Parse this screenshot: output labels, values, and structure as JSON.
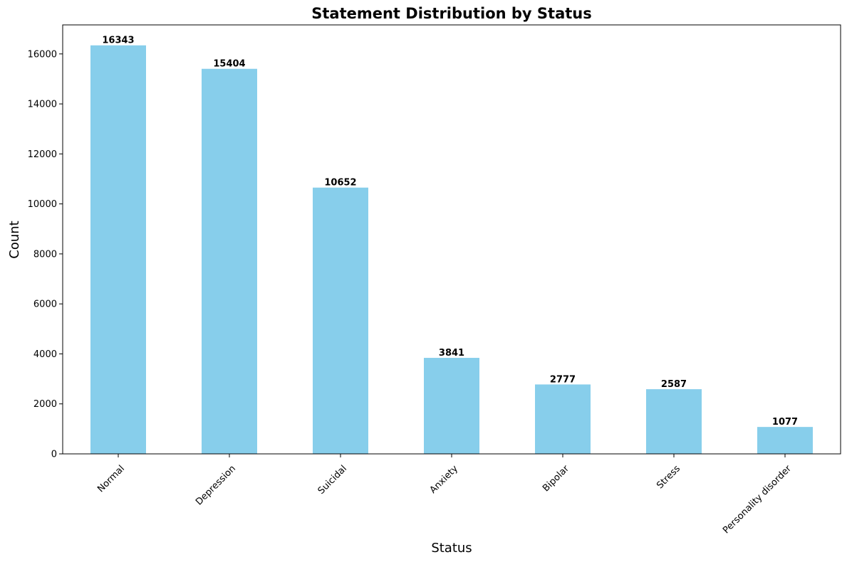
{
  "chart_data": {
    "type": "bar",
    "title": "Statement Distribution by Status",
    "xlabel": "Status",
    "ylabel": "Count",
    "categories": [
      "Normal",
      "Depression",
      "Suicidal",
      "Anxiety",
      "Bipolar",
      "Stress",
      "Personality disorder"
    ],
    "values": [
      16343,
      15404,
      10652,
      3841,
      2777,
      2587,
      1077
    ],
    "data_labels": [
      "16343",
      "15404",
      "10652",
      "3841",
      "2777",
      "2587",
      "1077"
    ],
    "ylim": [
      0,
      17161
    ],
    "yticks": [
      0,
      2000,
      4000,
      6000,
      8000,
      10000,
      12000,
      14000,
      16000
    ],
    "ytick_labels": [
      "0",
      "2000",
      "4000",
      "6000",
      "8000",
      "10000",
      "12000",
      "14000",
      "16000"
    ],
    "grid": false,
    "legend": "none",
    "bar_color": "#87ceeb"
  }
}
